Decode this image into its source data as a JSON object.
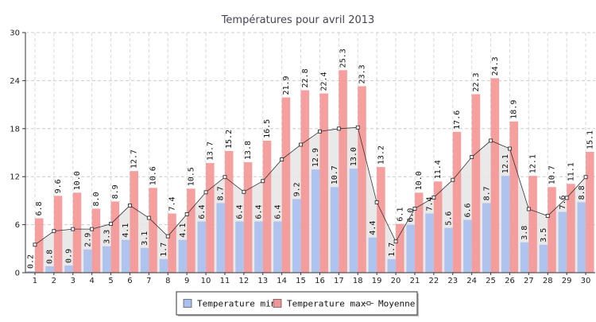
{
  "chart_data": {
    "type": "bar",
    "title": "Températures pour avril 2013",
    "xlabel": "",
    "ylabel": "",
    "ylim": [
      0,
      30
    ],
    "yticks": [
      0,
      6,
      12,
      18,
      24,
      30
    ],
    "grid": true,
    "legend_position": "bottom",
    "categories": [
      "1",
      "2",
      "3",
      "4",
      "5",
      "6",
      "7",
      "8",
      "9",
      "10",
      "11",
      "12",
      "13",
      "14",
      "15",
      "16",
      "17",
      "18",
      "19",
      "20",
      "21",
      "22",
      "23",
      "24",
      "25",
      "26",
      "27",
      "28",
      "29",
      "30"
    ],
    "series": [
      {
        "name": "Temperature min",
        "type": "bar",
        "color": "#a8bff0",
        "values": [
          0.2,
          0.8,
          0.9,
          2.9,
          3.3,
          4.1,
          3.1,
          1.7,
          4.1,
          6.4,
          8.7,
          6.4,
          6.4,
          6.4,
          9.2,
          12.9,
          10.7,
          13.0,
          4.4,
          1.7,
          6.0,
          7.4,
          5.6,
          6.6,
          8.7,
          12.1,
          3.8,
          3.5,
          7.6,
          8.8
        ],
        "labels": [
          "0.2",
          "0.8",
          "0.9",
          "2.9",
          "3.3",
          "4.1",
          "3.1",
          "1.7",
          "4.1",
          "6.4",
          "8.7",
          "6.4",
          "6.4",
          "6.4",
          "9.2",
          "12.9",
          "10.7",
          "13.0",
          "4.4",
          "1.7",
          "6.0",
          "7.4",
          "5.6",
          "6.6",
          "8.7",
          "12.1",
          "3.8",
          "3.5",
          "7.6",
          "8.8"
        ]
      },
      {
        "name": "Temperature max",
        "type": "bar",
        "color": "#f49595",
        "values": [
          6.8,
          9.6,
          10.0,
          8.0,
          8.9,
          12.7,
          10.6,
          7.4,
          10.5,
          13.7,
          15.2,
          13.8,
          16.5,
          21.9,
          22.8,
          22.4,
          25.3,
          23.3,
          13.2,
          6.1,
          10.0,
          11.4,
          17.6,
          22.3,
          24.3,
          18.9,
          12.1,
          10.7,
          11.1,
          15.1
        ],
        "labels": [
          "6.8",
          "9.6",
          "10.0",
          "8.0",
          "8.9",
          "12.7",
          "10.6",
          "7.4",
          "10.5",
          "13.7",
          "15.2",
          "13.8",
          "16.5",
          "21.9",
          "22.8",
          "22.4",
          "25.3",
          "23.3",
          "13.2",
          "6.1",
          "10.0",
          "11.4",
          "17.6",
          "22.3",
          "24.3",
          "18.9",
          "12.1",
          "10.7",
          "11.1",
          "15.1"
        ]
      },
      {
        "name": "Moyenne",
        "type": "line",
        "color": "#333333",
        "fill": "#e5e5e5",
        "values": [
          3.5,
          5.2,
          5.45,
          5.45,
          6.1,
          8.4,
          6.85,
          4.55,
          7.3,
          10.05,
          11.95,
          10.1,
          11.45,
          14.15,
          16.0,
          17.65,
          18.0,
          18.15,
          8.8,
          3.9,
          8.0,
          9.4,
          11.6,
          14.45,
          16.5,
          15.5,
          7.95,
          7.1,
          9.35,
          11.95
        ]
      }
    ]
  }
}
